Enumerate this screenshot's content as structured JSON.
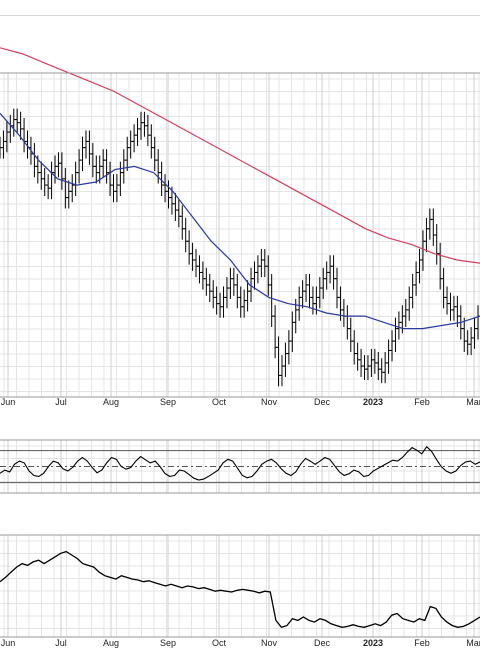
{
  "chart_data": [
    {
      "type": "ohlc",
      "panel": "price",
      "x_tick_labels": [
        "Jun",
        "Jul",
        "Aug",
        "Sep",
        "Oct",
        "Nov",
        "Dec",
        "2023",
        "Feb",
        "Mar"
      ],
      "year_label": "2023",
      "grid": true,
      "series": [
        {
          "type": "ohlc",
          "color": "#000000",
          "close": [
            0.78,
            0.8,
            0.83,
            0.85,
            0.87,
            0.86,
            0.84,
            0.8,
            0.78,
            0.76,
            0.72,
            0.7,
            0.68,
            0.66,
            0.65,
            0.7,
            0.72,
            0.73,
            0.68,
            0.62,
            0.64,
            0.66,
            0.7,
            0.74,
            0.78,
            0.8,
            0.76,
            0.72,
            0.7,
            0.72,
            0.74,
            0.7,
            0.66,
            0.64,
            0.66,
            0.7,
            0.74,
            0.78,
            0.8,
            0.82,
            0.84,
            0.86,
            0.85,
            0.82,
            0.78,
            0.74,
            0.7,
            0.66,
            0.64,
            0.62,
            0.6,
            0.58,
            0.56,
            0.52,
            0.48,
            0.44,
            0.42,
            0.4,
            0.38,
            0.36,
            0.34,
            0.32,
            0.3,
            0.28,
            0.27,
            0.3,
            0.33,
            0.36,
            0.34,
            0.3,
            0.27,
            0.29,
            0.32,
            0.36,
            0.38,
            0.4,
            0.42,
            0.4,
            0.34,
            0.24,
            0.14,
            0.05,
            0.08,
            0.12,
            0.16,
            0.22,
            0.26,
            0.3,
            0.32,
            0.34,
            0.3,
            0.28,
            0.3,
            0.33,
            0.36,
            0.38,
            0.4,
            0.36,
            0.3,
            0.26,
            0.24,
            0.2,
            0.16,
            0.12,
            0.1,
            0.08,
            0.07,
            0.08,
            0.1,
            0.09,
            0.07,
            0.06,
            0.09,
            0.13,
            0.16,
            0.2,
            0.22,
            0.24,
            0.26,
            0.3,
            0.34,
            0.38,
            0.42,
            0.48,
            0.52,
            0.55,
            0.5,
            0.44,
            0.36,
            0.3,
            0.28,
            0.26,
            0.27,
            0.24,
            0.2,
            0.16,
            0.15,
            0.17,
            0.2,
            0.24
          ]
        },
        {
          "type": "line",
          "color": "#2a3a9e",
          "values": [
            0.89,
            0.82,
            0.74,
            0.68,
            0.66,
            0.67,
            0.71,
            0.72,
            0.7,
            0.64,
            0.56,
            0.48,
            0.42,
            0.34,
            0.3,
            0.28,
            0.27,
            0.25,
            0.24,
            0.24,
            0.22,
            0.2,
            0.2,
            0.21,
            0.22,
            0.24
          ]
        },
        {
          "type": "line",
          "color": "#d2405e",
          "values": [
            1.1,
            1.08,
            1.05,
            1.02,
            0.99,
            0.96,
            0.92,
            0.88,
            0.84,
            0.8,
            0.76,
            0.72,
            0.68,
            0.64,
            0.6,
            0.56,
            0.52,
            0.49,
            0.47,
            0.44,
            0.42,
            0.41
          ]
        }
      ]
    },
    {
      "type": "line",
      "panel": "oscillator",
      "reference_lines": [
        0.8,
        0.5,
        0.2
      ],
      "series": [
        {
          "color": "#000000",
          "values": [
            0.35,
            0.42,
            0.38,
            0.55,
            0.62,
            0.58,
            0.4,
            0.3,
            0.28,
            0.35,
            0.5,
            0.62,
            0.58,
            0.45,
            0.4,
            0.48,
            0.62,
            0.7,
            0.62,
            0.48,
            0.36,
            0.42,
            0.58,
            0.7,
            0.66,
            0.5,
            0.44,
            0.48,
            0.62,
            0.72,
            0.65,
            0.58,
            0.62,
            0.5,
            0.35,
            0.28,
            0.3,
            0.42,
            0.4,
            0.32,
            0.24,
            0.2,
            0.22,
            0.28,
            0.35,
            0.42,
            0.58,
            0.66,
            0.62,
            0.46,
            0.3,
            0.25,
            0.28,
            0.4,
            0.55,
            0.62,
            0.66,
            0.58,
            0.45,
            0.35,
            0.3,
            0.38,
            0.55,
            0.68,
            0.62,
            0.55,
            0.62,
            0.7,
            0.66,
            0.52,
            0.38,
            0.3,
            0.34,
            0.42,
            0.38,
            0.28,
            0.3,
            0.4,
            0.46,
            0.52,
            0.58,
            0.64,
            0.62,
            0.7,
            0.82,
            0.92,
            0.86,
            0.78,
            0.94,
            0.84,
            0.66,
            0.5,
            0.4,
            0.35,
            0.4,
            0.52,
            0.6,
            0.62,
            0.55,
            0.6
          ]
        }
      ]
    },
    {
      "type": "line",
      "panel": "relative",
      "series": [
        {
          "color": "#000000",
          "values": [
            0.55,
            0.6,
            0.66,
            0.72,
            0.76,
            0.74,
            0.78,
            0.8,
            0.76,
            0.8,
            0.84,
            0.88,
            0.9,
            0.86,
            0.82,
            0.76,
            0.74,
            0.72,
            0.66,
            0.62,
            0.6,
            0.58,
            0.62,
            0.6,
            0.58,
            0.57,
            0.55,
            0.56,
            0.54,
            0.52,
            0.5,
            0.52,
            0.5,
            0.48,
            0.5,
            0.49,
            0.47,
            0.48,
            0.46,
            0.44,
            0.45,
            0.44,
            0.43,
            0.45,
            0.46,
            0.45,
            0.44,
            0.42,
            0.44,
            0.43,
            0.1,
            0.02,
            0.04,
            0.12,
            0.1,
            0.14,
            0.1,
            0.08,
            0.12,
            0.1,
            0.06,
            0.04,
            0.02,
            0.03,
            0.05,
            0.03,
            0.02,
            0.04,
            0.06,
            0.04,
            0.08,
            0.16,
            0.18,
            0.12,
            0.1,
            0.08,
            0.12,
            0.1,
            0.26,
            0.24,
            0.14,
            0.08,
            0.04,
            0.02,
            0.03,
            0.06,
            0.1,
            0.14
          ]
        }
      ]
    }
  ]
}
